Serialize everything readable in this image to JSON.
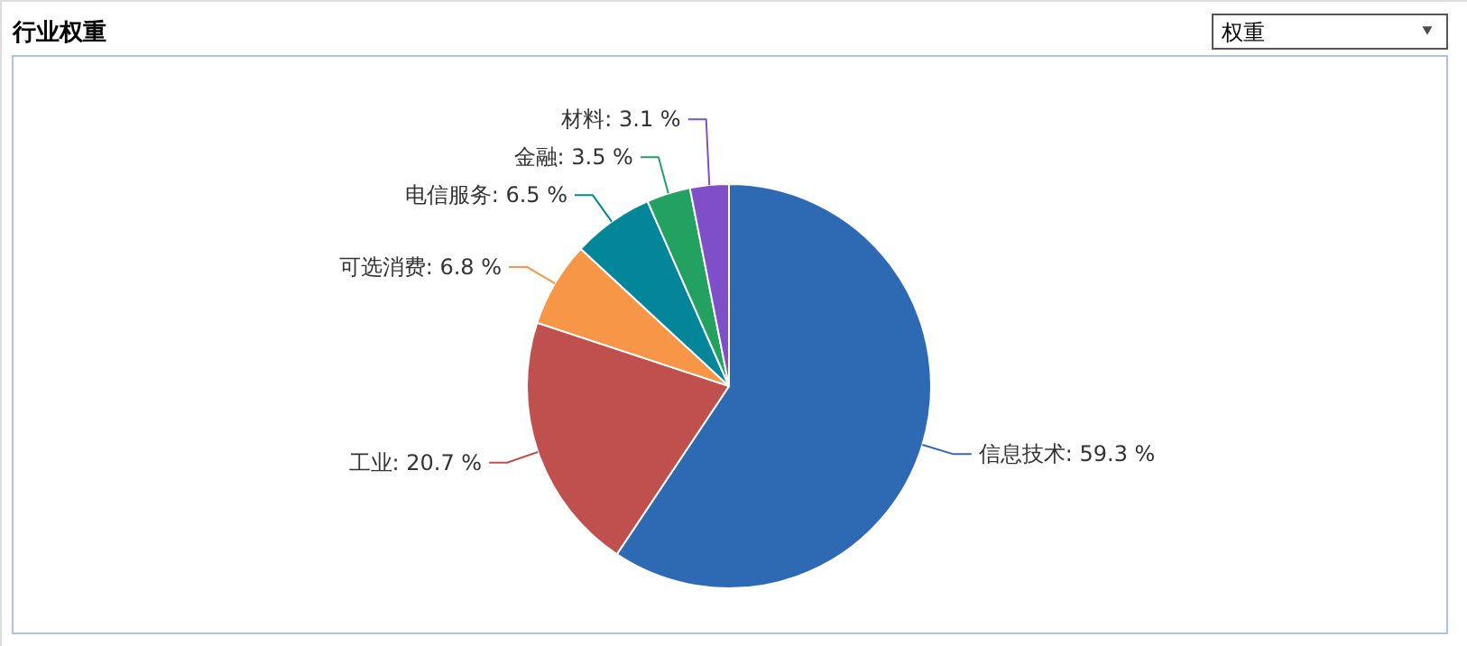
{
  "chart_data": {
    "type": "pie",
    "title": "行业权重",
    "categories": [
      "信息技术",
      "工业",
      "可选消费",
      "电信服务",
      "金融",
      "材料"
    ],
    "values": [
      59.3,
      20.7,
      6.8,
      6.5,
      3.5,
      3.1
    ],
    "value_labels": [
      "59.3 %",
      "20.7 %",
      "6.8 %",
      "6.5 %",
      "3.5 %",
      "3.1 %"
    ],
    "colors": [
      "#2e6ab4",
      "#c0504d",
      "#f79646",
      "#03869a",
      "#22a160",
      "#7f4fc9"
    ],
    "annotations": [
      "权重"
    ]
  }
}
